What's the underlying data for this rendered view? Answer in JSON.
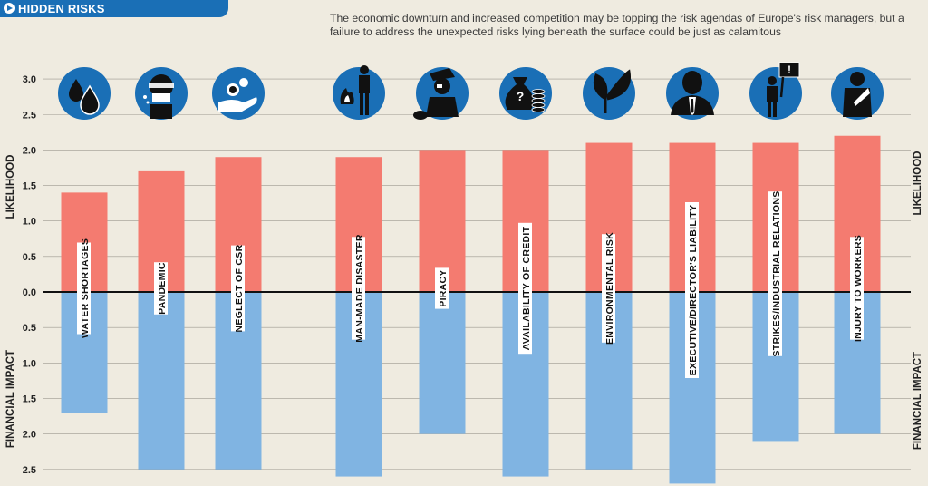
{
  "header": {
    "label": "HIDDEN RISKS"
  },
  "intro": "The economic downturn and increased competition may be topping the risk agendas of Europe's risk managers, but a failure to address the unexpected risks lying beneath the surface could be just as calamitous",
  "colors": {
    "likelihood": "#f47b70",
    "impact": "#80b4e2",
    "icon_circle": "#1a6fb6",
    "banner": "#1a6fb6",
    "background": "#efebe0"
  },
  "chart_data": {
    "type": "bar",
    "title": "",
    "ylabel_top": "LIKELIHOOD",
    "ylabel_bottom": "FINANCIAL IMPACT",
    "ylim_top": [
      0,
      3.0
    ],
    "ylim_bottom": [
      0,
      2.5
    ],
    "yticks_top": [
      "0.0",
      "0.5",
      "1.0",
      "1.5",
      "2.0",
      "2.5",
      "3.0"
    ],
    "yticks_bottom": [
      "0.5",
      "1.0",
      "1.5",
      "2.0",
      "2.5"
    ],
    "grid": true,
    "categories": [
      "WATER SHORTAGES",
      "PANDEMIC",
      "NEGLECT OF CSR",
      "MAN-MADE DISASTER",
      "PIRACY",
      "AVAILABILITY OF CREDIT",
      "ENVIRONMENTAL RISK",
      "EXECUTIVE/DIRECTOR'S LIABILITY",
      "STRIKES/INDUSTRIAL RELATIONS",
      "INJURY TO WORKERS"
    ],
    "icons": [
      "water-drops-icon",
      "pandemic-mask-icon",
      "hand-coins-icon",
      "fire-man-icon",
      "pirate-icon",
      "money-bag-icon",
      "leaf-icon",
      "executive-icon",
      "protester-sign-icon",
      "injured-worker-icon"
    ],
    "series": [
      {
        "name": "LIKELIHOOD",
        "values": [
          1.4,
          1.7,
          1.9,
          1.9,
          2.0,
          2.0,
          2.1,
          2.1,
          2.1,
          2.2
        ]
      },
      {
        "name": "FINANCIAL IMPACT",
        "values": [
          1.7,
          2.5,
          2.5,
          2.6,
          2.0,
          2.6,
          2.5,
          2.7,
          2.1,
          2.0
        ]
      }
    ]
  }
}
